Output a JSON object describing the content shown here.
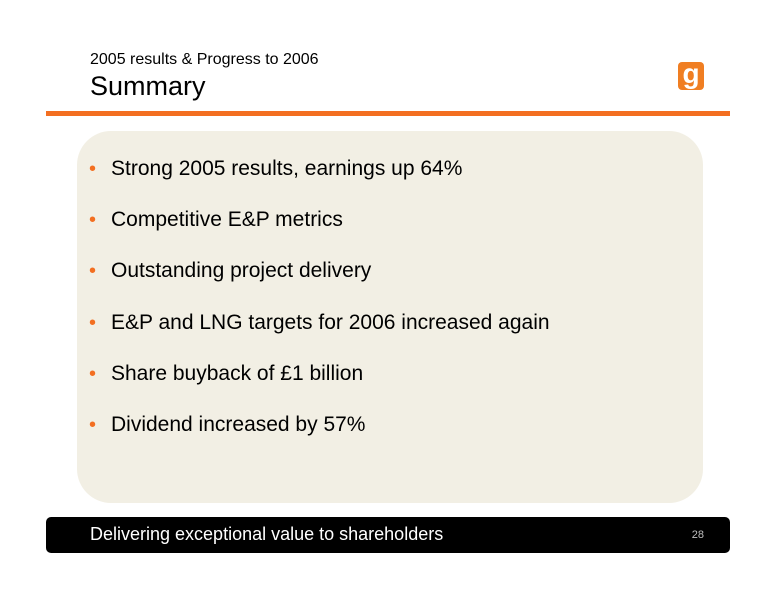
{
  "header": {
    "subtitle": "2005 results & Progress to 2006",
    "title": "Summary",
    "logo_letter": "g"
  },
  "bullets": [
    "Strong 2005 results, earnings up 64%",
    "Competitive E&P metrics",
    "Outstanding project delivery",
    "E&P and LNG targets for 2006 increased again",
    "Share buyback of £1 billion",
    "Dividend increased by 57%"
  ],
  "footer": {
    "tagline": "Delivering exceptional value to shareholders",
    "page_number": "28"
  },
  "colors": {
    "accent": "#f36f21",
    "panel": "#f2efe4",
    "footer_bar": "#000000"
  }
}
